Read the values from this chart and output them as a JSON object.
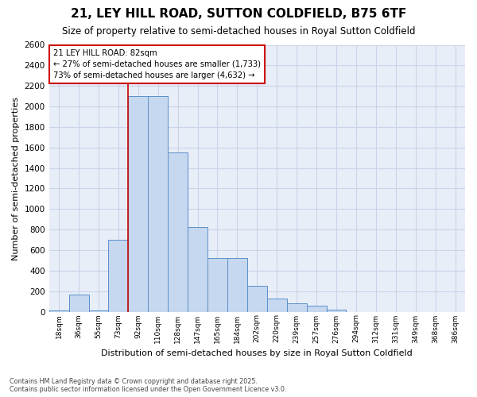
{
  "title": "21, LEY HILL ROAD, SUTTON COLDFIELD, B75 6TF",
  "subtitle": "Size of property relative to semi-detached houses in Royal Sutton Coldfield",
  "xlabel": "Distribution of semi-detached houses by size in Royal Sutton Coldfield",
  "ylabel": "Number of semi-detached properties",
  "categories": [
    "18sqm",
    "36sqm",
    "55sqm",
    "73sqm",
    "92sqm",
    "110sqm",
    "128sqm",
    "147sqm",
    "165sqm",
    "184sqm",
    "202sqm",
    "220sqm",
    "239sqm",
    "257sqm",
    "276sqm",
    "294sqm",
    "312sqm",
    "331sqm",
    "349sqm",
    "368sqm",
    "386sqm"
  ],
  "values": [
    10,
    170,
    10,
    700,
    2100,
    2100,
    1550,
    825,
    520,
    520,
    250,
    130,
    80,
    55,
    20,
    0,
    0,
    0,
    0,
    0,
    0
  ],
  "bar_color": "#c5d8ef",
  "bar_edge_color": "#5b8fc9",
  "red_line_x": 3.5,
  "annotation_title": "21 LEY HILL ROAD: 82sqm",
  "annotation_line1": "← 27% of semi-detached houses are smaller (1,733)",
  "annotation_line2": "73% of semi-detached houses are larger (4,632) →",
  "ylim": [
    0,
    2600
  ],
  "yticks": [
    0,
    200,
    400,
    600,
    800,
    1000,
    1200,
    1400,
    1600,
    1800,
    2000,
    2200,
    2400,
    2600
  ],
  "grid_color": "#c8d4e8",
  "background_color": "#e8eef8",
  "footer_line1": "Contains HM Land Registry data © Crown copyright and database right 2025.",
  "footer_line2": "Contains public sector information licensed under the Open Government Licence v3.0."
}
